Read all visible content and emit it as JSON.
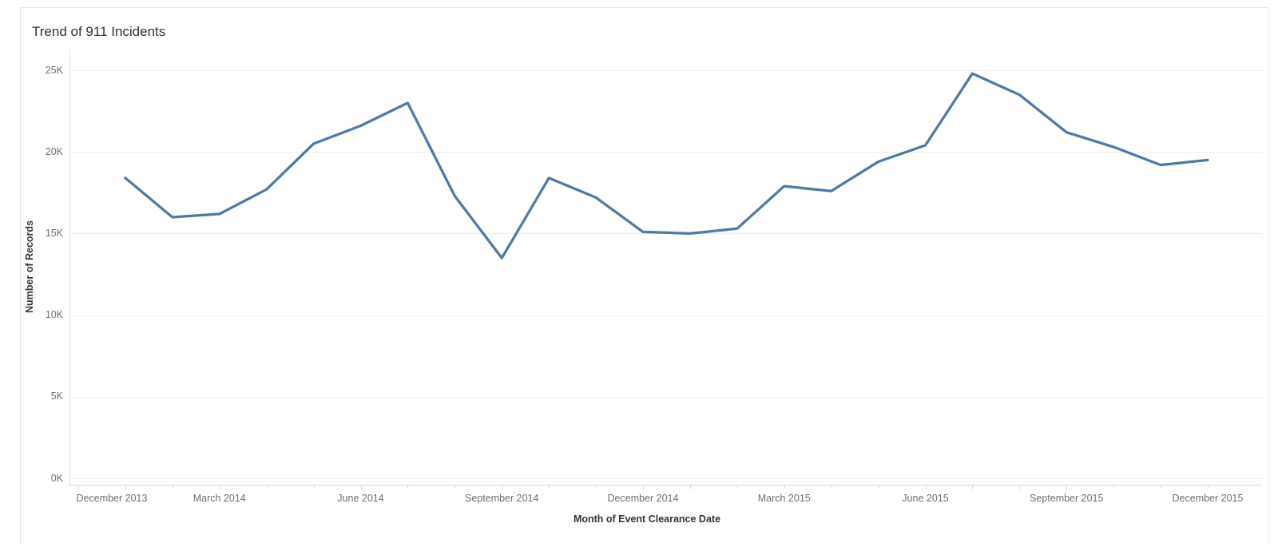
{
  "window": {
    "title": "Trend of 911 Incidents"
  },
  "chart_data": {
    "type": "line",
    "title": "Trend of 911 Incidents",
    "xlabel": "Month of Event Clearance Date",
    "ylabel": "Number of Records",
    "series": [
      {
        "name": "Number of Records",
        "x": [
          "January 2014",
          "February 2014",
          "March 2014",
          "April 2014",
          "May 2014",
          "June 2014",
          "July 2014",
          "August 2014",
          "September 2014",
          "October 2014",
          "November 2014",
          "December 2014",
          "January 2015",
          "February 2015",
          "March 2015",
          "April 2015",
          "May 2015",
          "June 2015",
          "July 2015",
          "August 2015",
          "September 2015",
          "October 2015",
          "November 2015",
          "December 2015"
        ],
        "values": [
          18400,
          16000,
          16200,
          17700,
          20500,
          21600,
          23000,
          17300,
          13500,
          18400,
          17200,
          15100,
          15000,
          15300,
          17900,
          17600,
          19400,
          20400,
          24800,
          23500,
          21200,
          20300,
          19200,
          19500
        ]
      }
    ],
    "x_axis": {
      "label": "Month of Event Clearance Date",
      "first_tick": "December 2013",
      "tick_interval": "month",
      "total_month_ticks": 25,
      "first_point_month_offset": 1,
      "labeled_ticks": [
        "December 2013",
        "March 2014",
        "June 2014",
        "September 2014",
        "December 2014",
        "March 2015",
        "June 2015",
        "September 2015",
        "December 2015"
      ],
      "label_every_n_months": 3
    },
    "y_axis": {
      "label": "Number of Records",
      "tick_labels": [
        "0K",
        "5K",
        "10K",
        "15K",
        "20K",
        "25K"
      ],
      "tick_values": [
        0,
        5000,
        10000,
        15000,
        20000,
        25000
      ],
      "range": [
        0,
        26300
      ]
    },
    "grid": true,
    "legend": "none",
    "colors": {
      "line": "#4e79a7",
      "grid": "#ebebeb",
      "axis": "#d7d7d7",
      "pane_border": "#e0e0e0",
      "text_muted": "#6f6f6f",
      "text_dark": "#333333",
      "viz_border": "#e6e6e6"
    }
  }
}
